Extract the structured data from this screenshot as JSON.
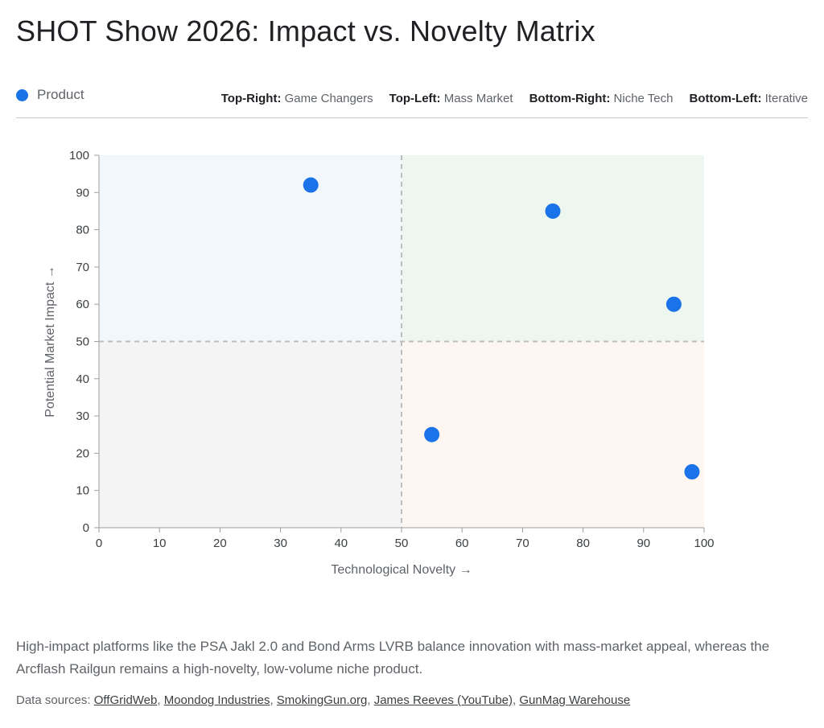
{
  "title": "SHOT Show 2026: Impact vs. Novelty Matrix",
  "legend": {
    "label": "Product",
    "color": "#1a73e8"
  },
  "quadrant_keys": [
    {
      "name": "Top-Right:",
      "value": "Game Changers"
    },
    {
      "name": "Top-Left:",
      "value": "Mass Market"
    },
    {
      "name": "Bottom-Right:",
      "value": "Niche Tech"
    },
    {
      "name": "Bottom-Left:",
      "value": "Iterative"
    }
  ],
  "chart_data": {
    "type": "scatter",
    "xlabel": "Technological Novelty →",
    "ylabel": "Potential Market Impact →",
    "xlim": [
      0,
      100
    ],
    "ylim": [
      0,
      100
    ],
    "x_ticks": [
      0,
      10,
      20,
      30,
      40,
      50,
      60,
      70,
      80,
      90,
      100
    ],
    "y_ticks": [
      0,
      10,
      20,
      30,
      40,
      50,
      60,
      70,
      80,
      90,
      100
    ],
    "divider": {
      "x": 50,
      "y": 50
    },
    "quadrant_fills": {
      "top_left": "#f2f7fc",
      "top_right": "#eef6f0",
      "bottom_left": "#f4f4f4",
      "bottom_right": "#fdf6f1"
    },
    "series": [
      {
        "name": "Product",
        "color": "#1a73e8",
        "points": [
          {
            "x": 35,
            "y": 92
          },
          {
            "x": 75,
            "y": 85
          },
          {
            "x": 95,
            "y": 60
          },
          {
            "x": 55,
            "y": 25
          },
          {
            "x": 98,
            "y": 15
          }
        ]
      }
    ]
  },
  "summary": "High-impact platforms like the PSA Jakl 2.0 and Bond Arms LVRB balance innovation with mass-market appeal, whereas the Arcflash Railgun remains a high-novelty, low-volume niche product.",
  "sources": {
    "prefix": "Data sources:",
    "items": [
      "OffGridWeb",
      "Moondog Industries",
      "SmokingGun.org",
      "James Reeves (YouTube)",
      "GunMag Warehouse"
    ]
  }
}
